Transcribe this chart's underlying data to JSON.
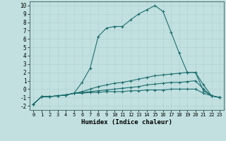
{
  "xlabel": "Humidex (Indice chaleur)",
  "bg_color": "#c2e0e0",
  "line_color": "#1e6e6e",
  "grid_color": "#b0d4d4",
  "xlim": [
    -0.5,
    23.5
  ],
  "ylim": [
    -2.5,
    10.5
  ],
  "xticks": [
    0,
    1,
    2,
    3,
    4,
    5,
    6,
    7,
    8,
    9,
    10,
    11,
    12,
    13,
    14,
    15,
    16,
    17,
    18,
    19,
    20,
    21,
    22,
    23
  ],
  "yticks": [
    -2,
    -1,
    0,
    1,
    2,
    3,
    4,
    5,
    6,
    7,
    8,
    9,
    10
  ],
  "series": [
    {
      "x": [
        0,
        1,
        2,
        3,
        4,
        5,
        6,
        7,
        8,
        9,
        10,
        11,
        12,
        13,
        14,
        15,
        16,
        17,
        18,
        19,
        20,
        21,
        22,
        23
      ],
      "y": [
        -1.8,
        -0.9,
        -0.9,
        -0.8,
        -0.7,
        -0.5,
        0.8,
        2.5,
        6.3,
        7.3,
        7.5,
        7.5,
        8.3,
        9.0,
        9.5,
        10.0,
        9.3,
        6.8,
        4.3,
        2.0,
        2.0,
        -0.2,
        -0.8,
        -1.0
      ]
    },
    {
      "x": [
        0,
        1,
        2,
        3,
        4,
        5,
        6,
        7,
        8,
        9,
        10,
        11,
        12,
        13,
        14,
        15,
        16,
        17,
        18,
        19,
        20,
        21,
        22,
        23
      ],
      "y": [
        -1.8,
        -0.9,
        -0.9,
        -0.8,
        -0.7,
        -0.5,
        -0.3,
        0.0,
        0.3,
        0.5,
        0.7,
        0.8,
        1.0,
        1.2,
        1.4,
        1.6,
        1.7,
        1.8,
        1.9,
        2.0,
        2.0,
        0.5,
        -0.8,
        -1.0
      ]
    },
    {
      "x": [
        0,
        1,
        2,
        3,
        4,
        5,
        6,
        7,
        8,
        9,
        10,
        11,
        12,
        13,
        14,
        15,
        16,
        17,
        18,
        19,
        20,
        21,
        22,
        23
      ],
      "y": [
        -1.8,
        -0.9,
        -0.9,
        -0.8,
        -0.7,
        -0.5,
        -0.4,
        -0.3,
        -0.2,
        -0.1,
        0.0,
        0.1,
        0.2,
        0.3,
        0.5,
        0.6,
        0.7,
        0.8,
        0.8,
        0.9,
        1.0,
        0.0,
        -0.8,
        -1.0
      ]
    },
    {
      "x": [
        0,
        1,
        2,
        3,
        4,
        5,
        6,
        7,
        8,
        9,
        10,
        11,
        12,
        13,
        14,
        15,
        16,
        17,
        18,
        19,
        20,
        21,
        22,
        23
      ],
      "y": [
        -1.8,
        -0.9,
        -0.9,
        -0.8,
        -0.7,
        -0.5,
        -0.5,
        -0.4,
        -0.4,
        -0.3,
        -0.3,
        -0.3,
        -0.2,
        -0.2,
        -0.1,
        -0.1,
        -0.1,
        0.0,
        0.0,
        0.0,
        0.0,
        -0.5,
        -0.8,
        -1.0
      ]
    }
  ]
}
